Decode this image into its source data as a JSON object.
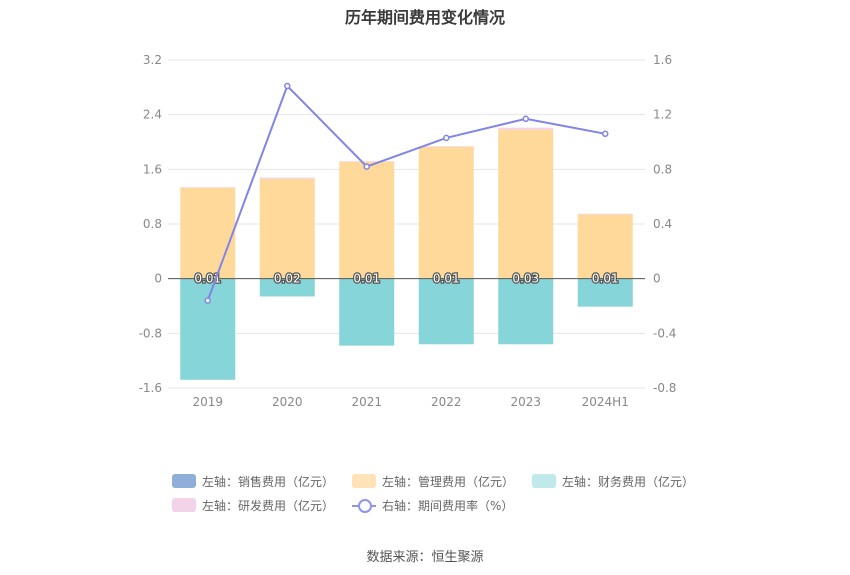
{
  "title": "历年期间费用变化情况",
  "source": "数据来源：恒生聚源",
  "legend": {
    "sales": "左轴：销售费用（亿元）",
    "admin": "左轴：管理费用（亿元）",
    "finance": "左轴：财务费用（亿元）",
    "rd": "左轴：研发费用（亿元）",
    "ratio": "右轴：期间费用率（%）"
  },
  "colors": {
    "sales": "#8fafd8",
    "admin": "#ffd99a",
    "finance": "#86d5d8",
    "rd": "#f2d3e8",
    "ratio": "#8085e8"
  },
  "chart_data": {
    "type": "bar",
    "categories": [
      "2019",
      "2020",
      "2021",
      "2022",
      "2023",
      "2024H1"
    ],
    "series": [
      {
        "name": "左轴：销售费用（亿元）",
        "axis": "left",
        "stack": "cost",
        "values": [
          0,
          0,
          0,
          0,
          0,
          0
        ]
      },
      {
        "name": "左轴：管理费用（亿元）",
        "axis": "left",
        "stack": "cost",
        "values": [
          1.33,
          1.46,
          1.71,
          1.93,
          2.18,
          0.94
        ]
      },
      {
        "name": "左轴：财务费用（亿元）",
        "axis": "left",
        "stack": "cost",
        "values": [
          -1.48,
          -0.26,
          -0.98,
          -0.96,
          -0.96,
          -0.41
        ]
      },
      {
        "name": "左轴：研发费用（亿元）",
        "axis": "left",
        "stack": "cost",
        "values": [
          0.01,
          0.02,
          0.01,
          0.01,
          0.03,
          0.01
        ]
      },
      {
        "name": "右轴：期间费用率（%）",
        "axis": "right",
        "type": "line",
        "values": [
          -0.16,
          1.41,
          0.82,
          1.03,
          1.17,
          1.06
        ]
      }
    ],
    "data_labels": [
      "0.01",
      "0.02",
      "0.01",
      "0.01",
      "0.03",
      "0.01"
    ],
    "left_axis": {
      "ticks": [
        "3.2",
        "2.4",
        "1.6",
        "0.8",
        "0",
        "-0.8",
        "-1.6"
      ],
      "ylim": [
        -1.6,
        3.2
      ]
    },
    "right_axis": {
      "ticks": [
        "1.6",
        "1.2",
        "0.8",
        "0.4",
        "0",
        "-0.4",
        "-0.8"
      ],
      "ylim": [
        -0.8,
        1.6
      ]
    },
    "grid": true,
    "legend_position": "bottom"
  }
}
